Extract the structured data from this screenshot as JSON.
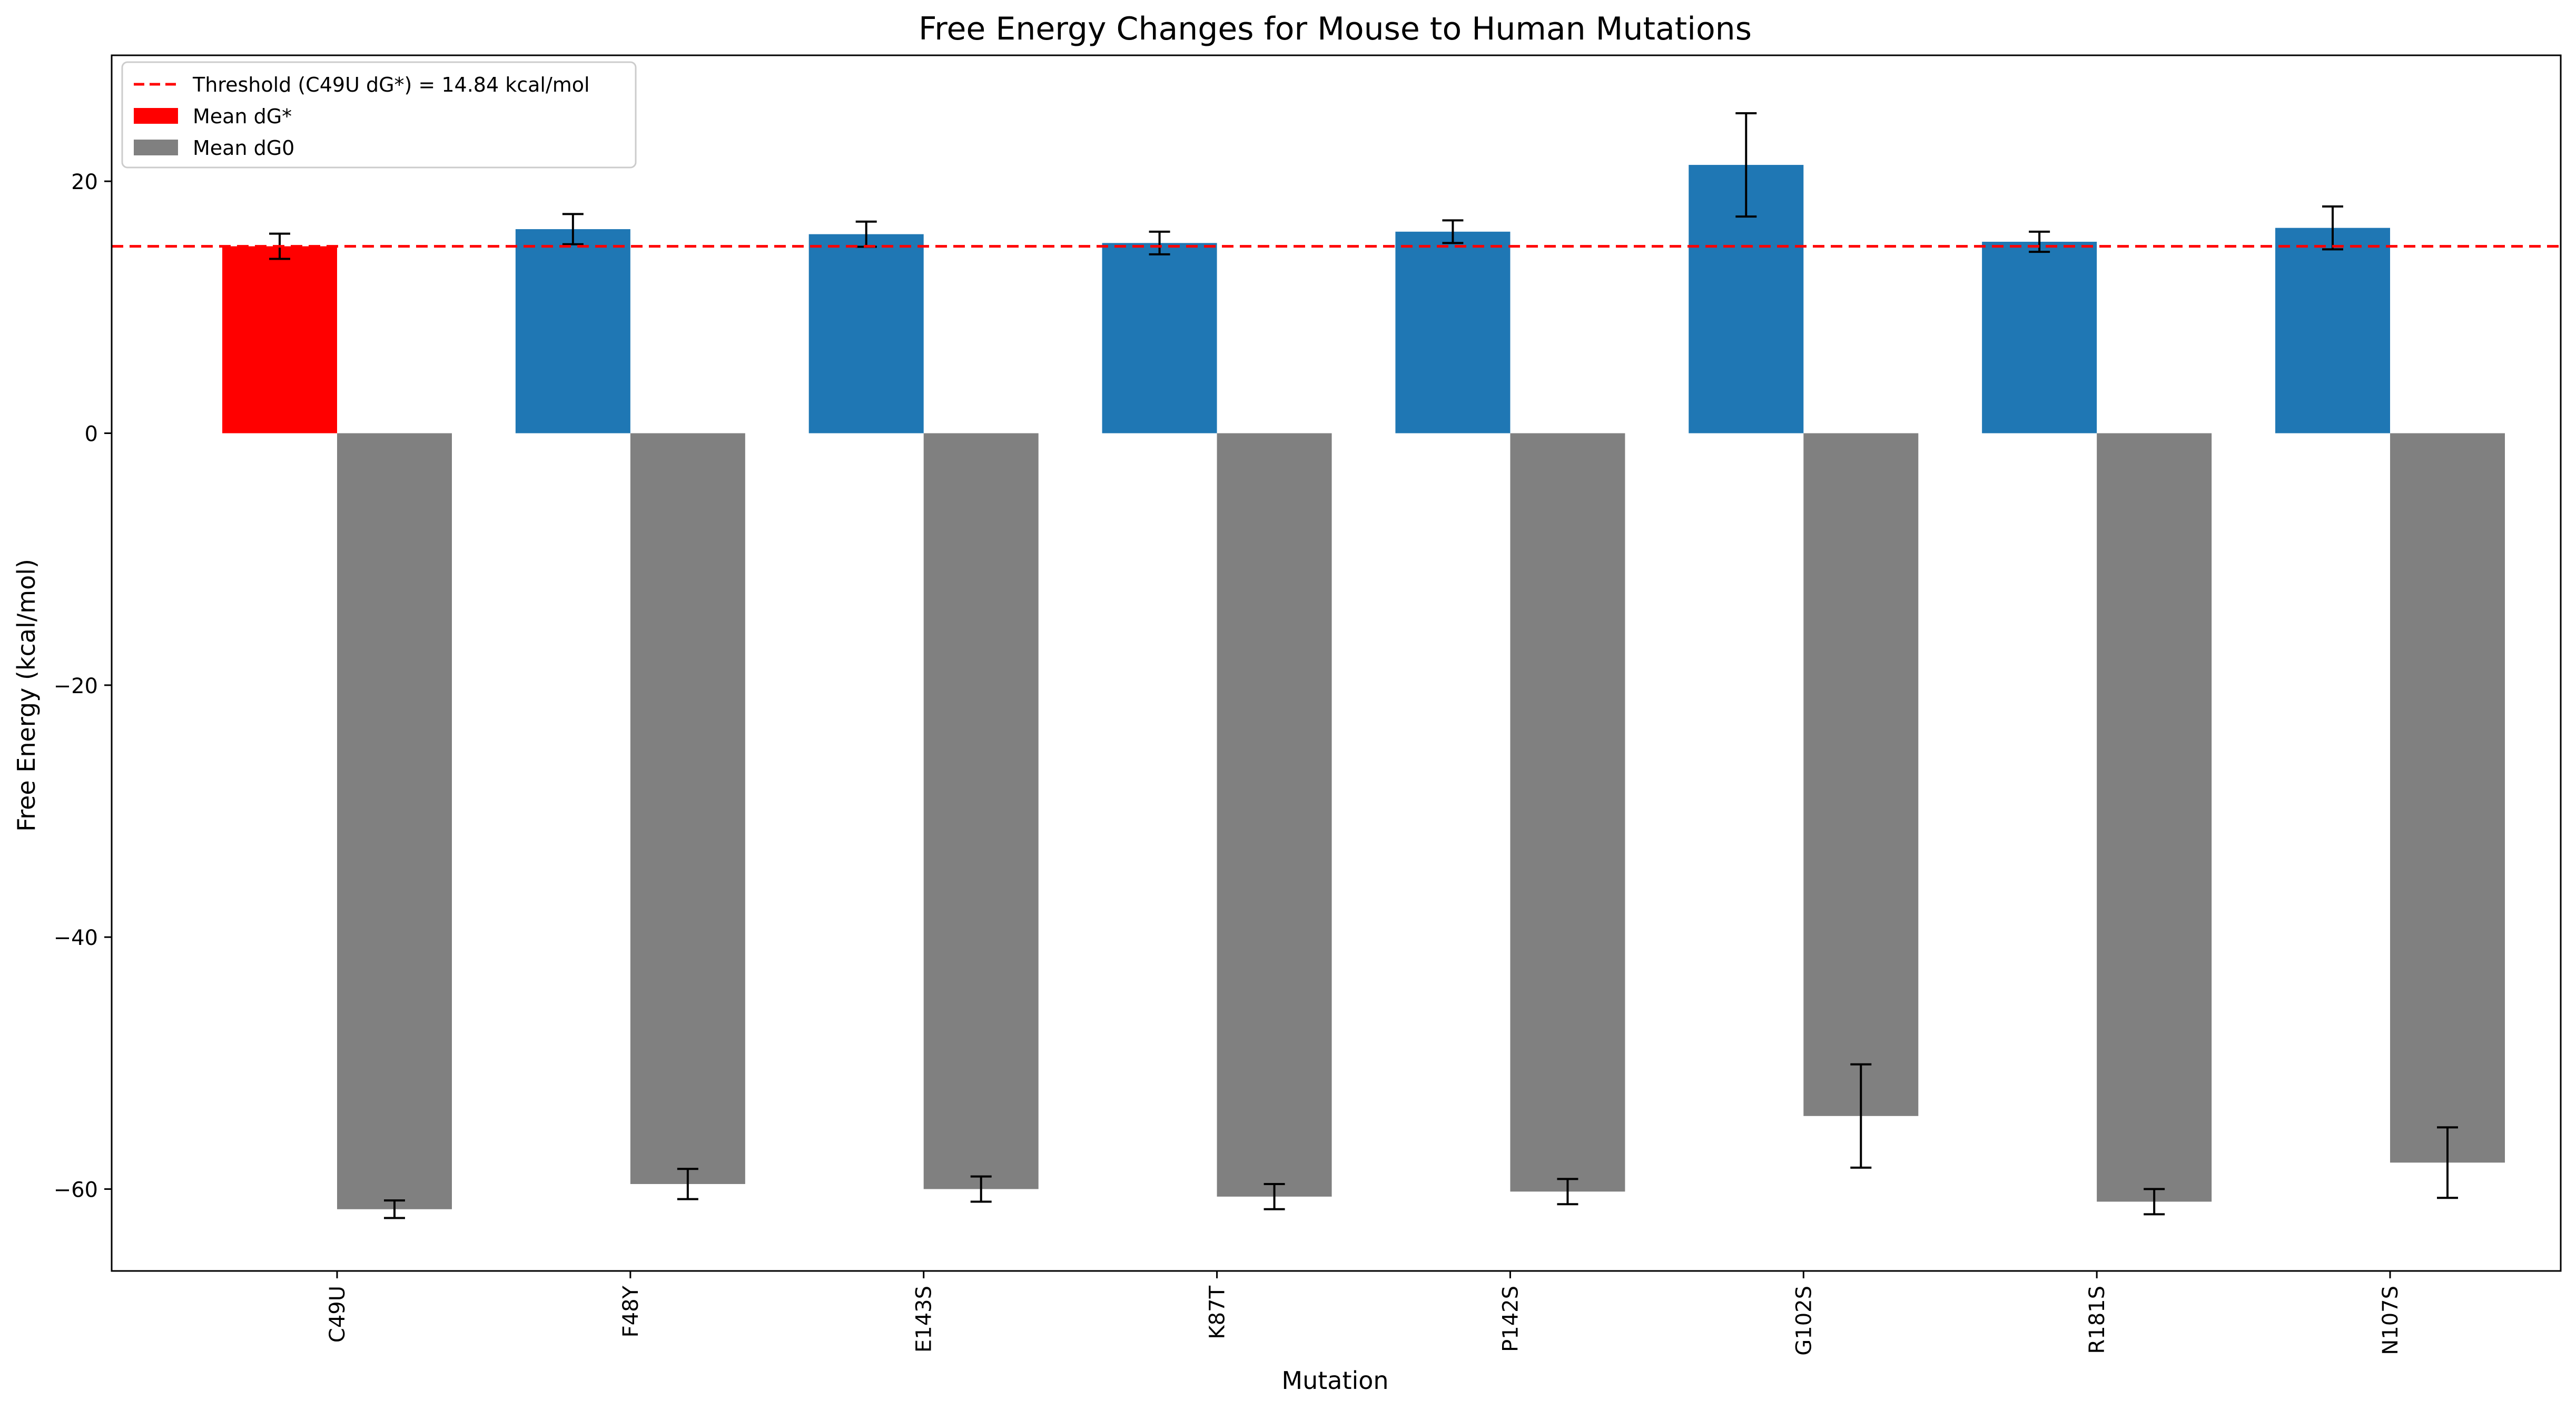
{
  "chart_data": {
    "type": "bar",
    "title": "Free Energy Changes for Mouse to Human Mutations",
    "xlabel": "Mutation",
    "ylabel": "Free Energy (kcal/mol)",
    "ylim": [
      -66.5,
      30.0
    ],
    "yticks": [
      -60,
      -40,
      -20,
      0,
      20
    ],
    "ytick_labels": [
      "−60",
      "−40",
      "−20",
      "0",
      "20"
    ],
    "grid": false,
    "legend_position": "top-left",
    "categories": [
      "C49U",
      "F48Y",
      "E143S",
      "K87T",
      "P142S",
      "G102S",
      "R181S",
      "N107S"
    ],
    "series": [
      {
        "name": "Mean dG*",
        "values": [
          14.84,
          16.2,
          15.8,
          15.1,
          16.0,
          21.3,
          15.2,
          16.3
        ],
        "errors": [
          1.0,
          1.2,
          1.0,
          0.9,
          0.9,
          4.1,
          0.8,
          1.7
        ],
        "color": "#1f77b4",
        "highlight_color": "#ff0000",
        "highlight_index": 0
      },
      {
        "name": "Mean dG0",
        "values": [
          -61.6,
          -59.6,
          -60.0,
          -60.6,
          -60.2,
          -54.2,
          -61.0,
          -57.9
        ],
        "errors": [
          0.7,
          1.2,
          1.0,
          1.0,
          1.0,
          4.1,
          1.0,
          2.8
        ],
        "color": "#808080"
      }
    ],
    "reference_line": {
      "label": "Threshold (C49U dG*) = 14.84 kcal/mol",
      "value": 14.84,
      "color": "#ff0000",
      "style": "dashed"
    },
    "legend": [
      {
        "label": "Threshold (C49U dG*) = 14.84 kcal/mol",
        "kind": "line",
        "color": "#ff0000"
      },
      {
        "label": "Mean dG*",
        "kind": "patch",
        "color": "#ff0000"
      },
      {
        "label": "Mean dG0",
        "kind": "patch",
        "color": "#808080"
      }
    ]
  }
}
